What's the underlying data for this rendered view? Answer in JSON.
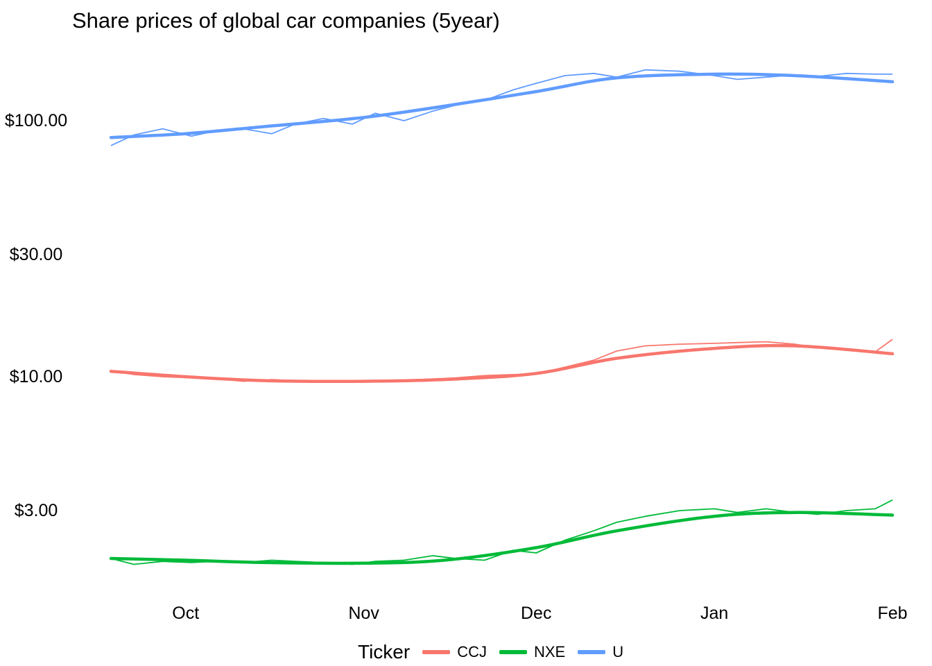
{
  "chart_data": {
    "type": "line",
    "title": "Share prices of global car companies (5year)",
    "xlabel": "",
    "ylabel": "",
    "y_scale": "log",
    "ylim": [
      1.6,
      170
    ],
    "x_range": [
      "2023-09-18",
      "2024-02-01"
    ],
    "grid": false,
    "legend_position": "bottom",
    "legend_title": "Ticker",
    "y_ticks": [
      {
        "value": 3,
        "label": "$3.00"
      },
      {
        "value": 10,
        "label": "$10.00"
      },
      {
        "value": 30,
        "label": "$30.00"
      },
      {
        "value": 100,
        "label": "$100.00"
      }
    ],
    "x_ticks": [
      {
        "value": "2023-10-01",
        "label": "Oct"
      },
      {
        "value": "2023-11-01",
        "label": "Nov"
      },
      {
        "value": "2023-12-01",
        "label": "Dec"
      },
      {
        "value": "2024-01-01",
        "label": "Jan"
      },
      {
        "value": "2024-02-01",
        "label": "Feb"
      }
    ],
    "series": [
      {
        "name": "CCJ",
        "color": "#F8766D",
        "dates": [
          "2023-09-18",
          "2023-09-22",
          "2023-09-27",
          "2023-10-02",
          "2023-10-06",
          "2023-10-11",
          "2023-10-16",
          "2023-10-20",
          "2023-10-25",
          "2023-10-30",
          "2023-11-03",
          "2023-11-08",
          "2023-11-13",
          "2023-11-17",
          "2023-11-22",
          "2023-11-27",
          "2023-12-01",
          "2023-12-06",
          "2023-12-11",
          "2023-12-15",
          "2023-12-20",
          "2023-12-26",
          "2024-01-01",
          "2024-01-05",
          "2024-01-10",
          "2024-01-15",
          "2024-01-19",
          "2024-01-24",
          "2024-01-29",
          "2024-02-01"
        ],
        "values": [
          10.55,
          10.2,
          10.0,
          9.9,
          9.85,
          9.6,
          9.75,
          9.65,
          9.55,
          9.6,
          9.55,
          9.7,
          9.8,
          9.9,
          10.1,
          10.2,
          10.25,
          10.9,
          11.6,
          12.6,
          13.2,
          13.4,
          13.5,
          13.6,
          13.7,
          13.4,
          13.0,
          12.7,
          12.5,
          14.0
        ]
      },
      {
        "name": "NXE",
        "color": "#00BA38",
        "dates": [
          "2023-09-18",
          "2023-09-22",
          "2023-09-27",
          "2023-10-02",
          "2023-10-06",
          "2023-10-11",
          "2023-10-16",
          "2023-10-20",
          "2023-10-25",
          "2023-10-30",
          "2023-11-03",
          "2023-11-08",
          "2023-11-13",
          "2023-11-17",
          "2023-11-22",
          "2023-11-27",
          "2023-12-01",
          "2023-12-06",
          "2023-12-11",
          "2023-12-15",
          "2023-12-20",
          "2023-12-26",
          "2024-01-01",
          "2024-01-05",
          "2024-01-10",
          "2024-01-15",
          "2024-01-19",
          "2024-01-24",
          "2024-01-29",
          "2024-02-01"
        ],
        "values": [
          1.95,
          1.85,
          1.9,
          1.88,
          1.9,
          1.88,
          1.92,
          1.9,
          1.88,
          1.85,
          1.9,
          1.92,
          2.0,
          1.95,
          1.92,
          2.1,
          2.05,
          2.3,
          2.5,
          2.7,
          2.85,
          3.0,
          3.05,
          2.95,
          3.05,
          2.95,
          2.9,
          3.0,
          3.05,
          3.3
        ]
      },
      {
        "name": "U",
        "color": "#619CFF",
        "dates": [
          "2023-09-18",
          "2023-09-22",
          "2023-09-27",
          "2023-10-02",
          "2023-10-06",
          "2023-10-11",
          "2023-10-16",
          "2023-10-20",
          "2023-10-25",
          "2023-10-30",
          "2023-11-03",
          "2023-11-08",
          "2023-11-13",
          "2023-11-17",
          "2023-11-22",
          "2023-11-27",
          "2023-12-01",
          "2023-12-06",
          "2023-12-11",
          "2023-12-15",
          "2023-12-20",
          "2023-12-26",
          "2024-01-01",
          "2024-01-05",
          "2024-01-10",
          "2024-01-15",
          "2024-01-19",
          "2024-01-24",
          "2024-01-29",
          "2024-02-01"
        ],
        "values": [
          80,
          88,
          93,
          87,
          91,
          93,
          89,
          97,
          102,
          97,
          107,
          100,
          109,
          115,
          120,
          132,
          140,
          150,
          153,
          148,
          158,
          156,
          150,
          145,
          148,
          151,
          149,
          153,
          152,
          152
        ]
      }
    ],
    "smooth": [
      {
        "name": "CCJ",
        "color": "#F8766D",
        "dates": [
          "2023-09-18",
          "2023-10-01",
          "2023-10-15",
          "2023-11-01",
          "2023-11-15",
          "2023-12-01",
          "2023-12-15",
          "2024-01-01",
          "2024-01-15",
          "2024-02-01"
        ],
        "values": [
          10.5,
          10.0,
          9.65,
          9.6,
          9.75,
          10.3,
          11.8,
          12.9,
          13.2,
          12.3
        ]
      },
      {
        "name": "NXE",
        "color": "#00BA38",
        "dates": [
          "2023-09-18",
          "2023-10-01",
          "2023-10-15",
          "2023-11-01",
          "2023-11-15",
          "2023-12-01",
          "2023-12-15",
          "2024-01-01",
          "2024-01-15",
          "2024-02-01"
        ],
        "values": [
          1.95,
          1.92,
          1.88,
          1.87,
          1.92,
          2.15,
          2.5,
          2.85,
          2.95,
          2.88
        ]
      },
      {
        "name": "U",
        "color": "#619CFF",
        "dates": [
          "2023-09-18",
          "2023-10-01",
          "2023-10-15",
          "2023-11-01",
          "2023-11-15",
          "2023-12-01",
          "2023-12-15",
          "2024-01-01",
          "2024-01-15",
          "2024-02-01"
        ],
        "values": [
          86,
          89,
          95,
          103,
          114,
          130,
          147,
          152,
          150,
          142
        ]
      }
    ]
  }
}
